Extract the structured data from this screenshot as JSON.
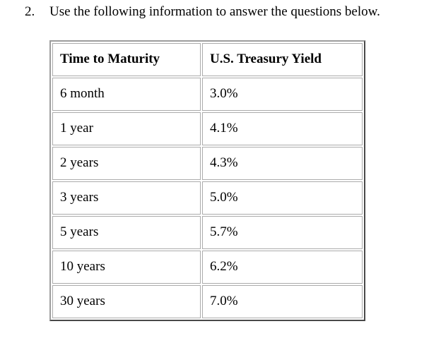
{
  "question": {
    "number": "2.",
    "text": "Use the following information to answer the questions below."
  },
  "table": {
    "headers": [
      "Time to Maturity",
      "U.S. Treasury Yield"
    ],
    "rows": [
      [
        "6 month",
        "3.0%"
      ],
      [
        "1 year",
        "4.1%"
      ],
      [
        "2 years",
        "4.3%"
      ],
      [
        "3 years",
        "5.0%"
      ],
      [
        "5 years",
        "5.7%"
      ],
      [
        "10 years",
        "6.2%"
      ],
      [
        "30 years",
        "7.0%"
      ]
    ]
  }
}
